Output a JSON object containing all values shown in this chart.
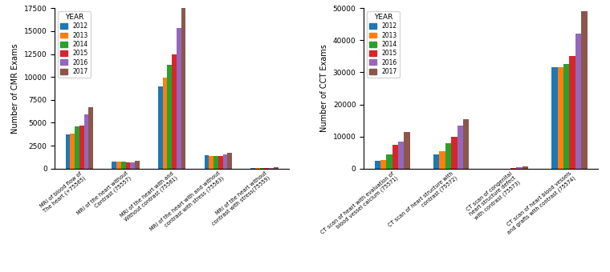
{
  "cmr": {
    "categories": [
      "MRI of blood flow of\nThe heart (+75565)",
      "MRI of the heart without\nContrast (75557)",
      "MRI of the heart with and\nWithout contrast (75561)",
      "MRI of the heart with and without\ncontrast with stress (75563)",
      "MRI of the heart without\ncontrast with stress(75559)"
    ],
    "ylabel": "Number of CMR Exams",
    "ylim": [
      0,
      17500
    ],
    "yticks": [
      0,
      2500,
      5000,
      7500,
      10000,
      12500,
      15000,
      17500
    ],
    "data": {
      "2012": [
        3700,
        800,
        9000,
        1500,
        50
      ],
      "2013": [
        3800,
        750,
        9900,
        1400,
        60
      ],
      "2014": [
        4600,
        750,
        11300,
        1400,
        70
      ],
      "2015": [
        4700,
        720,
        12500,
        1400,
        80
      ],
      "2016": [
        5900,
        720,
        15300,
        1550,
        100
      ],
      "2017": [
        6700,
        830,
        17500,
        1750,
        130
      ]
    }
  },
  "cct": {
    "categories": [
      "CT scan of heart with evaluation of\nblood vessel calcium (75571)",
      "CT scan of heart structure with\ncontrast (75572)",
      "CT scan of congenital\nheart structure defect\nwith contrast (75573)",
      "CT scan of heart blood vessels\nand grafts with contrast (75574)"
    ],
    "ylabel": "Number of CCT Exams",
    "ylim": [
      0,
      50000
    ],
    "yticks": [
      0,
      10000,
      20000,
      30000,
      40000,
      50000
    ],
    "data": {
      "2012": [
        2500,
        4500,
        50,
        31500
      ],
      "2013": [
        2700,
        5500,
        60,
        31500
      ],
      "2014": [
        4500,
        8000,
        70,
        32500
      ],
      "2015": [
        7500,
        10000,
        80,
        35000
      ],
      "2016": [
        8500,
        13500,
        500,
        42000
      ],
      "2017": [
        11500,
        15500,
        600,
        49000
      ]
    }
  },
  "years": [
    "2012",
    "2013",
    "2014",
    "2015",
    "2016",
    "2017"
  ],
  "colors": [
    "#1f77b4",
    "#ff7f0e",
    "#2ca02c",
    "#d62728",
    "#9467bd",
    "#8c564b"
  ],
  "figsize": [
    7.6,
    3.4
  ],
  "dpi": 100
}
